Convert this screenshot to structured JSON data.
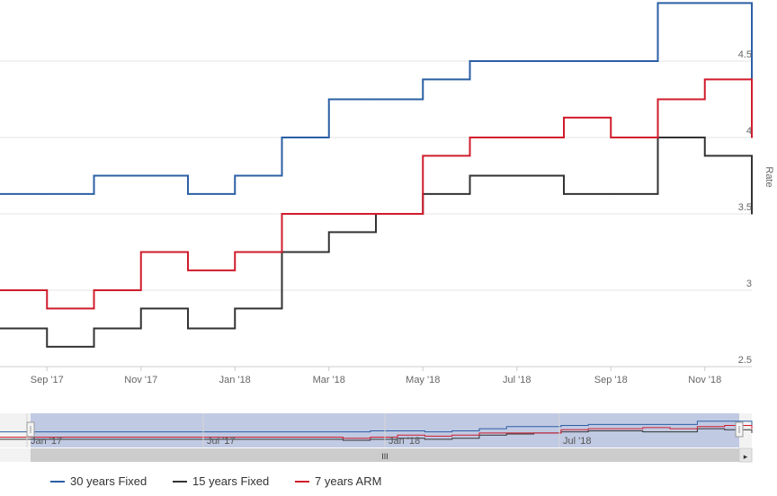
{
  "chart_data": {
    "type": "line",
    "title": "",
    "ylabel": "Rate",
    "xlabel": "",
    "ylim": [
      2.5,
      4.9
    ],
    "y_ticks": [
      "2.5",
      "3",
      "3.5",
      "4",
      "4.5"
    ],
    "x_tick_labels": [
      "Sep '17",
      "Nov '17",
      "Jan '18",
      "Mar '18",
      "May '18",
      "Jul '18",
      "Sep '18",
      "Nov '18"
    ],
    "navigator_labels": [
      "Jan '17",
      "Jul '17",
      "Jan '18",
      "Jul '18"
    ],
    "navigator_handle_glyph": "III",
    "navigator_arrow": "▸",
    "x_dates": [
      "Aug '17",
      "Sep '17",
      "Oct '17",
      "Nov '17",
      "Dec '17",
      "Jan '18",
      "Feb '18",
      "Mar '18",
      "Apr '18",
      "May '18",
      "Jun '18",
      "Jul '18",
      "Aug '18",
      "Sep '18",
      "Oct '18",
      "Nov '18",
      "Dec '18"
    ],
    "series": [
      {
        "name": "30 years Fixed",
        "color": "#2b5fa4",
        "values": [
          3.63,
          3.63,
          3.75,
          3.75,
          3.63,
          3.75,
          4.0,
          4.25,
          4.25,
          4.38,
          4.5,
          4.5,
          4.5,
          4.5,
          4.88,
          4.88,
          4.38
        ]
      },
      {
        "name": "15 years Fixed",
        "color": "#333333",
        "values": [
          2.75,
          2.63,
          2.75,
          2.88,
          2.75,
          2.88,
          3.25,
          3.38,
          3.5,
          3.63,
          3.75,
          3.75,
          3.63,
          3.63,
          4.0,
          3.88,
          3.5
        ]
      },
      {
        "name": "7 years ARM",
        "color": "#d01c2c",
        "values": [
          3.0,
          2.88,
          3.0,
          3.25,
          3.13,
          3.25,
          3.5,
          3.5,
          3.5,
          3.88,
          4.0,
          4.0,
          4.13,
          4.0,
          4.25,
          4.38,
          4.0
        ]
      }
    ],
    "legend_position": "bottom-center",
    "grid": true
  }
}
